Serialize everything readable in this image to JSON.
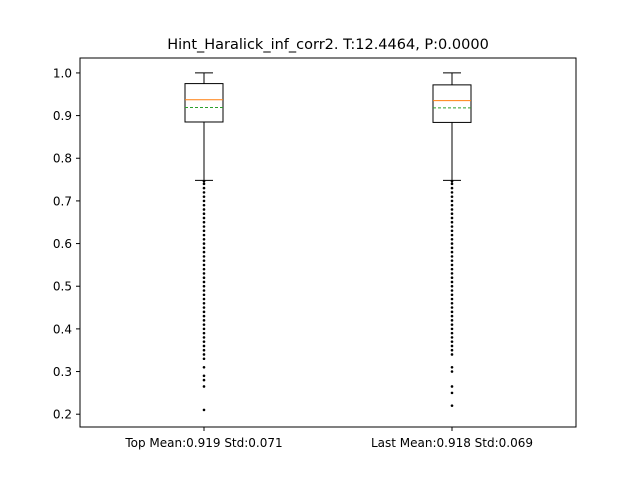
{
  "chart_data": {
    "type": "box",
    "title": "Hint_Haralick_inf_corr2. T:12.4464, P:0.0000",
    "xlabel": "",
    "ylabel": "",
    "ylim": [
      0.17,
      1.035
    ],
    "yticks": [
      0.2,
      0.3,
      0.4,
      0.5,
      0.6,
      0.7,
      0.8,
      0.9,
      1.0
    ],
    "ytick_labels": [
      "0.2",
      "0.3",
      "0.4",
      "0.5",
      "0.6",
      "0.7",
      "0.8",
      "0.9",
      "1.0"
    ],
    "categories": [
      "Top Mean:0.919 Std:0.071",
      "Last Mean:0.918 Std:0.069"
    ],
    "boxes": [
      {
        "label": "Top Mean:0.919 Std:0.071",
        "whisker_low": 0.748,
        "q1": 0.885,
        "median": 0.937,
        "mean": 0.919,
        "q3": 0.975,
        "whisker_high": 1.0,
        "outliers": [
          0.746,
          0.74,
          0.73,
          0.72,
          0.71,
          0.7,
          0.69,
          0.68,
          0.67,
          0.66,
          0.65,
          0.64,
          0.63,
          0.62,
          0.61,
          0.6,
          0.59,
          0.58,
          0.57,
          0.56,
          0.55,
          0.54,
          0.53,
          0.52,
          0.51,
          0.5,
          0.49,
          0.48,
          0.47,
          0.46,
          0.45,
          0.44,
          0.43,
          0.42,
          0.41,
          0.4,
          0.39,
          0.38,
          0.37,
          0.36,
          0.35,
          0.34,
          0.33,
          0.31,
          0.29,
          0.28,
          0.265,
          0.21
        ]
      },
      {
        "label": "Last Mean:0.918 Std:0.069",
        "whisker_low": 0.748,
        "q1": 0.884,
        "median": 0.935,
        "mean": 0.918,
        "q3": 0.972,
        "whisker_high": 1.0,
        "outliers": [
          0.746,
          0.74,
          0.73,
          0.72,
          0.71,
          0.7,
          0.69,
          0.68,
          0.67,
          0.66,
          0.65,
          0.64,
          0.63,
          0.62,
          0.61,
          0.6,
          0.59,
          0.58,
          0.57,
          0.56,
          0.55,
          0.54,
          0.53,
          0.52,
          0.51,
          0.5,
          0.49,
          0.48,
          0.47,
          0.46,
          0.45,
          0.44,
          0.43,
          0.42,
          0.41,
          0.4,
          0.39,
          0.38,
          0.37,
          0.36,
          0.35,
          0.34,
          0.31,
          0.3,
          0.265,
          0.25,
          0.22
        ]
      }
    ],
    "colors": {
      "box": "#000000",
      "median": "#ff7f0e",
      "mean": "#2ca02c",
      "outlier": "#000000",
      "background": "#ffffff"
    },
    "grid": false,
    "legend": "none"
  }
}
